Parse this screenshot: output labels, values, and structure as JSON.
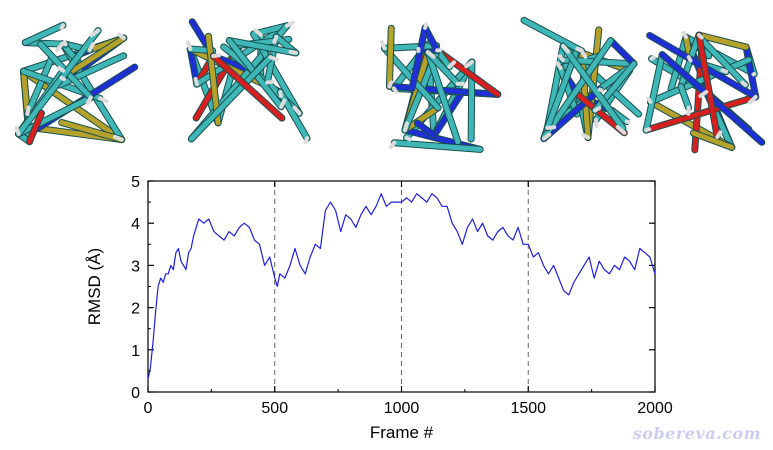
{
  "chart_data": {
    "type": "line",
    "title": "",
    "xlabel": "Frame #",
    "ylabel": "RMSD (Å)",
    "xlim": [
      0,
      2000
    ],
    "ylim": [
      0,
      5
    ],
    "xticks": [
      0,
      500,
      1000,
      1500,
      2000
    ],
    "yticks": [
      0,
      1,
      2,
      3,
      4,
      5
    ],
    "reference_lines_x": [
      500,
      1000,
      1500
    ],
    "grid": false,
    "series": [
      {
        "color": "#1f1fe0",
        "x": [
          0,
          10,
          20,
          30,
          40,
          50,
          60,
          70,
          80,
          90,
          100,
          110,
          120,
          130,
          140,
          150,
          160,
          170,
          180,
          190,
          200,
          220,
          240,
          260,
          280,
          300,
          320,
          340,
          360,
          380,
          400,
          420,
          440,
          460,
          480,
          500,
          510,
          520,
          540,
          560,
          580,
          600,
          620,
          640,
          660,
          680,
          700,
          720,
          740,
          760,
          780,
          800,
          820,
          840,
          860,
          880,
          900,
          920,
          940,
          960,
          980,
          1000,
          1020,
          1040,
          1060,
          1080,
          1100,
          1120,
          1140,
          1160,
          1180,
          1200,
          1220,
          1240,
          1260,
          1280,
          1300,
          1320,
          1340,
          1360,
          1380,
          1400,
          1420,
          1440,
          1460,
          1480,
          1500,
          1520,
          1540,
          1560,
          1580,
          1600,
          1620,
          1640,
          1660,
          1680,
          1700,
          1720,
          1740,
          1760,
          1780,
          1800,
          1820,
          1840,
          1860,
          1880,
          1900,
          1920,
          1940,
          1960,
          1980,
          2000
        ],
        "y": [
          0.3,
          0.6,
          1.2,
          1.9,
          2.5,
          2.7,
          2.6,
          2.8,
          2.8,
          3.0,
          2.9,
          3.3,
          3.4,
          3.1,
          3.0,
          2.9,
          3.3,
          3.4,
          3.7,
          3.9,
          4.1,
          4.0,
          4.1,
          3.8,
          3.7,
          3.6,
          3.8,
          3.7,
          3.9,
          4.0,
          3.9,
          3.6,
          3.5,
          3.0,
          3.2,
          2.7,
          2.5,
          2.8,
          2.7,
          3.0,
          3.4,
          3.0,
          2.8,
          3.2,
          3.5,
          3.4,
          4.3,
          4.5,
          4.3,
          3.8,
          4.2,
          4.1,
          3.9,
          4.2,
          4.4,
          4.2,
          4.4,
          4.7,
          4.4,
          4.5,
          4.5,
          4.5,
          4.6,
          4.5,
          4.7,
          4.6,
          4.5,
          4.7,
          4.6,
          4.4,
          4.4,
          4.0,
          3.8,
          3.5,
          3.9,
          4.1,
          3.8,
          4.0,
          3.7,
          3.6,
          3.8,
          3.9,
          3.7,
          3.6,
          3.9,
          3.5,
          3.5,
          3.2,
          3.3,
          3.0,
          2.8,
          3.0,
          2.7,
          2.4,
          2.3,
          2.6,
          2.8,
          3.0,
          3.2,
          2.7,
          3.1,
          2.9,
          2.8,
          3.0,
          2.9,
          3.2,
          3.1,
          2.9,
          3.4,
          3.3,
          3.2,
          2.8
        ]
      }
    ]
  },
  "watermark": "sobereva.com"
}
